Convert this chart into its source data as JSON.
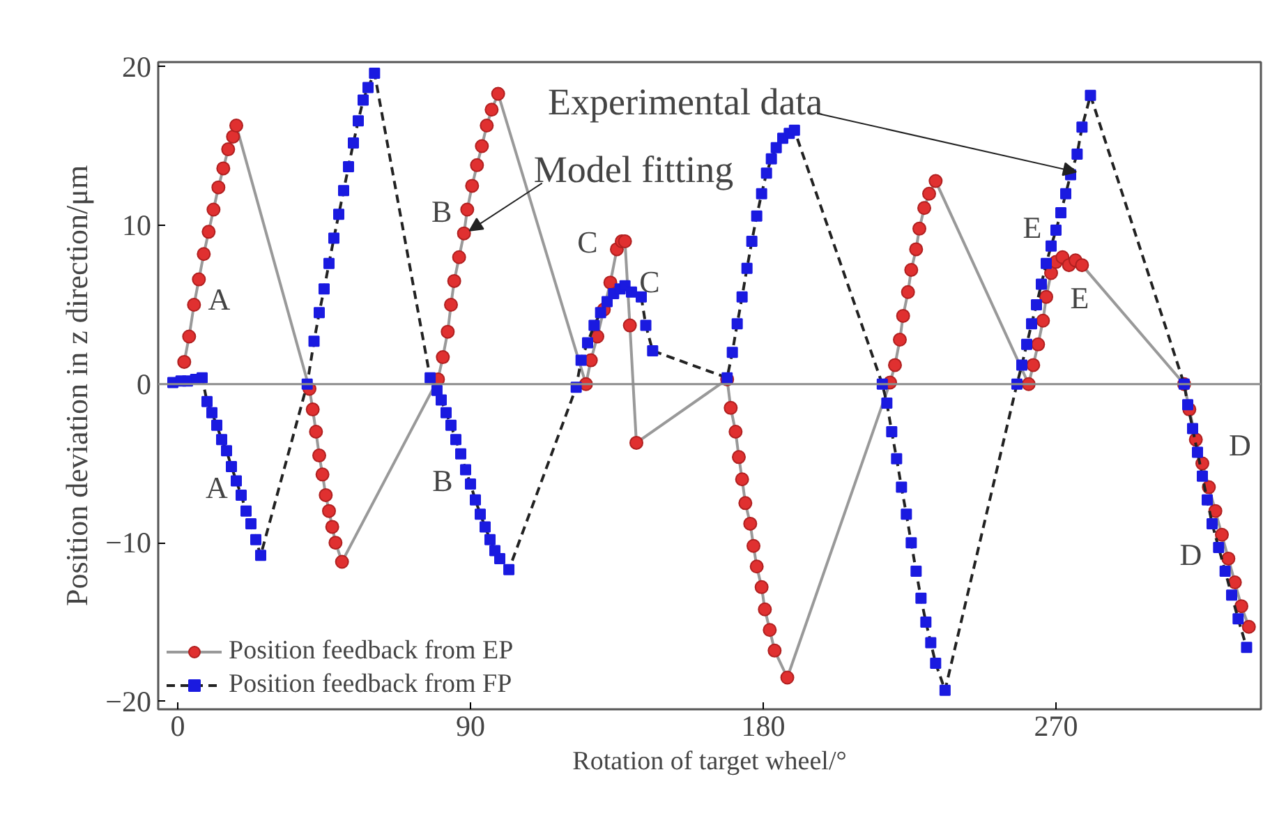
{
  "chart_data": {
    "type": "line",
    "xlabel": "Rotation of target wheel/°",
    "ylabel": "Position deviation in z direction/μm",
    "xlim": [
      -6,
      333
    ],
    "ylim": [
      -20.5,
      20.3
    ],
    "xticks": [
      0,
      90,
      180,
      270
    ],
    "yticks": [
      -20,
      -10,
      0,
      10,
      20
    ],
    "grid": false,
    "legend": "bottom left",
    "ref_lines": [
      {
        "axis": "y",
        "value": 0,
        "label": null,
        "color": "#8c8c8c"
      }
    ],
    "annotations": [
      {
        "text": "Experimental data",
        "x": 274.5,
        "y": 13.2
      },
      {
        "text": "Model fitting",
        "x": 88,
        "y": 9.5
      },
      {
        "text": "A",
        "x": 5,
        "y": 5
      },
      {
        "text": "A",
        "x": 18,
        "y": -6.1
      },
      {
        "text": "B",
        "x": 88,
        "y": 9.5
      },
      {
        "text": "B",
        "x": 87,
        "y": -4.4
      },
      {
        "text": "C",
        "x": 135,
        "y": 8.5
      },
      {
        "text": "C",
        "x": 142.5,
        "y": 5.5
      },
      {
        "text": "E",
        "x": 270,
        "y": 9.7
      },
      {
        "text": "E",
        "x": 276,
        "y": 7.8
      },
      {
        "text": "D",
        "x": 315,
        "y": -5
      },
      {
        "text": "D",
        "x": 320,
        "y": -10.3
      }
    ],
    "series": [
      {
        "name": "Position feedback from EP",
        "color": "#e03030",
        "marker": "circle",
        "line_style": "solid",
        "x": [
          2,
          3.5,
          5,
          6.5,
          8,
          9.5,
          11,
          12.5,
          14,
          15.5,
          17,
          18,
          40.5,
          41.5,
          42.5,
          43.5,
          44.5,
          45.5,
          46.5,
          47.5,
          48.5,
          50.5,
          80,
          81.5,
          83,
          84,
          85,
          86.5,
          88,
          89,
          90.5,
          92,
          93.5,
          95,
          96.5,
          98.5,
          125.5,
          127,
          129,
          131,
          133,
          135,
          136.5,
          137.5,
          139,
          141,
          168.9,
          170,
          171.5,
          172.5,
          173.5,
          174.5,
          176,
          177,
          178,
          179.5,
          180.5,
          182,
          183.5,
          187.4,
          219,
          220.5,
          222,
          223,
          224.5,
          225.5,
          227,
          228,
          229.5,
          231,
          233,
          261.6,
          263,
          264.5,
          266,
          267,
          268.5,
          270,
          272,
          274,
          276,
          278,
          309.4,
          311,
          313,
          315,
          317,
          319,
          321,
          323,
          325,
          327,
          329.3
        ],
        "values": [
          1.4,
          3,
          5,
          6.6,
          8.2,
          9.6,
          11,
          12.4,
          13.6,
          14.8,
          15.6,
          16.3,
          -0.3,
          -1.6,
          -3,
          -4.5,
          -5.7,
          -7,
          -8,
          -9,
          -10,
          -11.2,
          0.3,
          1.7,
          3.3,
          5,
          6.5,
          8,
          9.5,
          11,
          12.5,
          13.8,
          15,
          16.3,
          17.3,
          18.3,
          0,
          1.5,
          3,
          4.7,
          6.4,
          8.5,
          9,
          9,
          3.7,
          -3.7,
          0.3,
          -1.5,
          -3,
          -4.6,
          -6,
          -7.5,
          -8.8,
          -10.2,
          -11.5,
          -12.8,
          -14.2,
          -15.5,
          -16.8,
          -18.5,
          0.1,
          1.2,
          2.8,
          4.3,
          5.8,
          7.2,
          8.5,
          9.8,
          11.1,
          12,
          12.8,
          0,
          1.2,
          2.5,
          4,
          5.5,
          7,
          7.7,
          8,
          7.5,
          7.8,
          7.5,
          0,
          -1.6,
          -3.5,
          -5,
          -6.5,
          -8,
          -9.5,
          -11,
          -12.5,
          -14,
          -15.3
        ]
      },
      {
        "name": "Position feedback from FP",
        "color": "#1a1ae0",
        "marker": "square",
        "line_style": "dashed",
        "x": [
          -1.5,
          1,
          3,
          5.5,
          7.5,
          9,
          10.5,
          12,
          13.5,
          15,
          16.5,
          18,
          19.5,
          21,
          22.5,
          24,
          25.5,
          39.8,
          41.9,
          43.5,
          45,
          46.5,
          48,
          49.5,
          51,
          52.5,
          54,
          55.5,
          57,
          58.5,
          60.5,
          77.6,
          79.7,
          81,
          82.5,
          84,
          85.5,
          87,
          88.5,
          90,
          91.5,
          93,
          94.5,
          96,
          97.5,
          99,
          101.8,
          122.5,
          124,
          126,
          128,
          130,
          132,
          134,
          136,
          137.5,
          139.5,
          142.5,
          143.9,
          146,
          168.9,
          170.5,
          172,
          173.5,
          175,
          176.5,
          178,
          179.5,
          181,
          182.5,
          184,
          186,
          188,
          189.6,
          216.6,
          218,
          219.5,
          221,
          222.5,
          224,
          225.5,
          227,
          228.5,
          230,
          231.5,
          233,
          235.9,
          258,
          259.5,
          261,
          262.5,
          264,
          265.5,
          267,
          268.5,
          270,
          271.5,
          273,
          274.5,
          276.5,
          278,
          280.6,
          309.4,
          310.5,
          312,
          313.5,
          315,
          316.5,
          318,
          320,
          322,
          324,
          326,
          328.6
        ],
        "values": [
          0.1,
          0.2,
          0.2,
          0.3,
          0.4,
          -1.1,
          -1.8,
          -2.6,
          -3.5,
          -4.2,
          -5.2,
          -6.1,
          -7,
          -8,
          -8.8,
          -9.8,
          -10.8,
          0,
          2.7,
          4.5,
          6,
          7.6,
          9.2,
          10.7,
          12.2,
          13.7,
          15.2,
          16.6,
          17.9,
          18.7,
          19.6,
          0.4,
          -0.4,
          -1,
          -1.8,
          -2.6,
          -3.5,
          -4.4,
          -5.4,
          -6.3,
          -7.3,
          -8.2,
          -9,
          -9.8,
          -10.5,
          -11,
          -11.7,
          -0.2,
          1.5,
          2.6,
          3.7,
          4.5,
          5.2,
          5.7,
          6,
          6.2,
          5.8,
          5.5,
          3.7,
          2.1,
          0.4,
          2,
          3.8,
          5.5,
          7.3,
          9,
          10.6,
          12,
          13.3,
          14.2,
          14.9,
          15.5,
          15.8,
          16,
          0,
          -1.2,
          -3,
          -4.7,
          -6.5,
          -8.2,
          -10,
          -11.8,
          -13.5,
          -15,
          -16.3,
          -17.6,
          -19.3,
          0,
          1.2,
          2.5,
          3.8,
          5,
          6.3,
          7.6,
          8.7,
          9.7,
          10.8,
          12,
          13.2,
          14.5,
          16.2,
          18.2,
          0,
          -1.3,
          -2.8,
          -4.3,
          -5.8,
          -7.3,
          -8.8,
          -10.3,
          -11.8,
          -13.3,
          -14.8,
          -16.6
        ]
      }
    ]
  }
}
